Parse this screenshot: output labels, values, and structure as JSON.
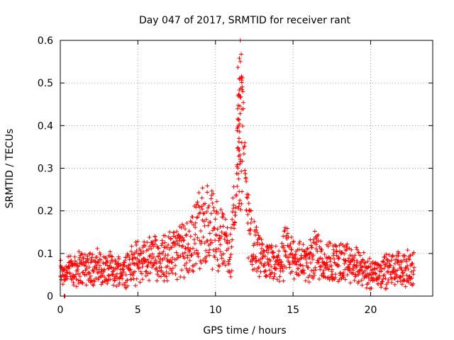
{
  "chart_data": {
    "type": "scatter",
    "title": "Day 047 of 2017, SRMTID for receiver rant",
    "xlabel": "GPS time / hours",
    "ylabel": "SRMTID / TECUs",
    "xlim": [
      0,
      24
    ],
    "ylim": [
      0,
      0.6
    ],
    "xticks": [
      0,
      5,
      10,
      15,
      20
    ],
    "xtick_labels": [
      "0",
      "5",
      "10",
      "15",
      "20"
    ],
    "yticks": [
      0,
      0.1,
      0.2,
      0.3,
      0.4,
      0.5,
      0.6
    ],
    "ytick_labels": [
      "0",
      "0.1",
      "0.2",
      "0.3",
      "0.4",
      "0.5",
      "0.6"
    ],
    "grid": true,
    "marker": "+",
    "series": [
      {
        "name": "SRMTID",
        "color": "#ff0000",
        "x_range_hours": [
          0,
          22.8
        ],
        "baseline_profile": [
          [
            0.0,
            0.055
          ],
          [
            1.0,
            0.065
          ],
          [
            2.0,
            0.07
          ],
          [
            3.0,
            0.06
          ],
          [
            4.0,
            0.06
          ],
          [
            5.0,
            0.08
          ],
          [
            6.0,
            0.09
          ],
          [
            7.0,
            0.095
          ],
          [
            8.0,
            0.11
          ],
          [
            8.5,
            0.13
          ],
          [
            9.0,
            0.16
          ],
          [
            9.5,
            0.165
          ],
          [
            10.0,
            0.15
          ],
          [
            10.5,
            0.13
          ],
          [
            11.0,
            0.11
          ],
          [
            11.3,
            0.2
          ],
          [
            11.5,
            0.4
          ],
          [
            11.65,
            0.55
          ],
          [
            11.8,
            0.4
          ],
          [
            12.0,
            0.22
          ],
          [
            12.3,
            0.13
          ],
          [
            13.0,
            0.08
          ],
          [
            14.0,
            0.07
          ],
          [
            14.5,
            0.1
          ],
          [
            15.0,
            0.09
          ],
          [
            16.0,
            0.075
          ],
          [
            16.5,
            0.11
          ],
          [
            17.0,
            0.08
          ],
          [
            18.0,
            0.08
          ],
          [
            19.0,
            0.07
          ],
          [
            20.0,
            0.055
          ],
          [
            21.0,
            0.06
          ],
          [
            22.0,
            0.065
          ],
          [
            22.8,
            0.06
          ]
        ],
        "peak": {
          "x": 11.6,
          "y": 0.6
        },
        "outliers": [
          [
            0.25,
            0.0
          ],
          [
            0.3,
            0.0
          ]
        ]
      }
    ]
  }
}
